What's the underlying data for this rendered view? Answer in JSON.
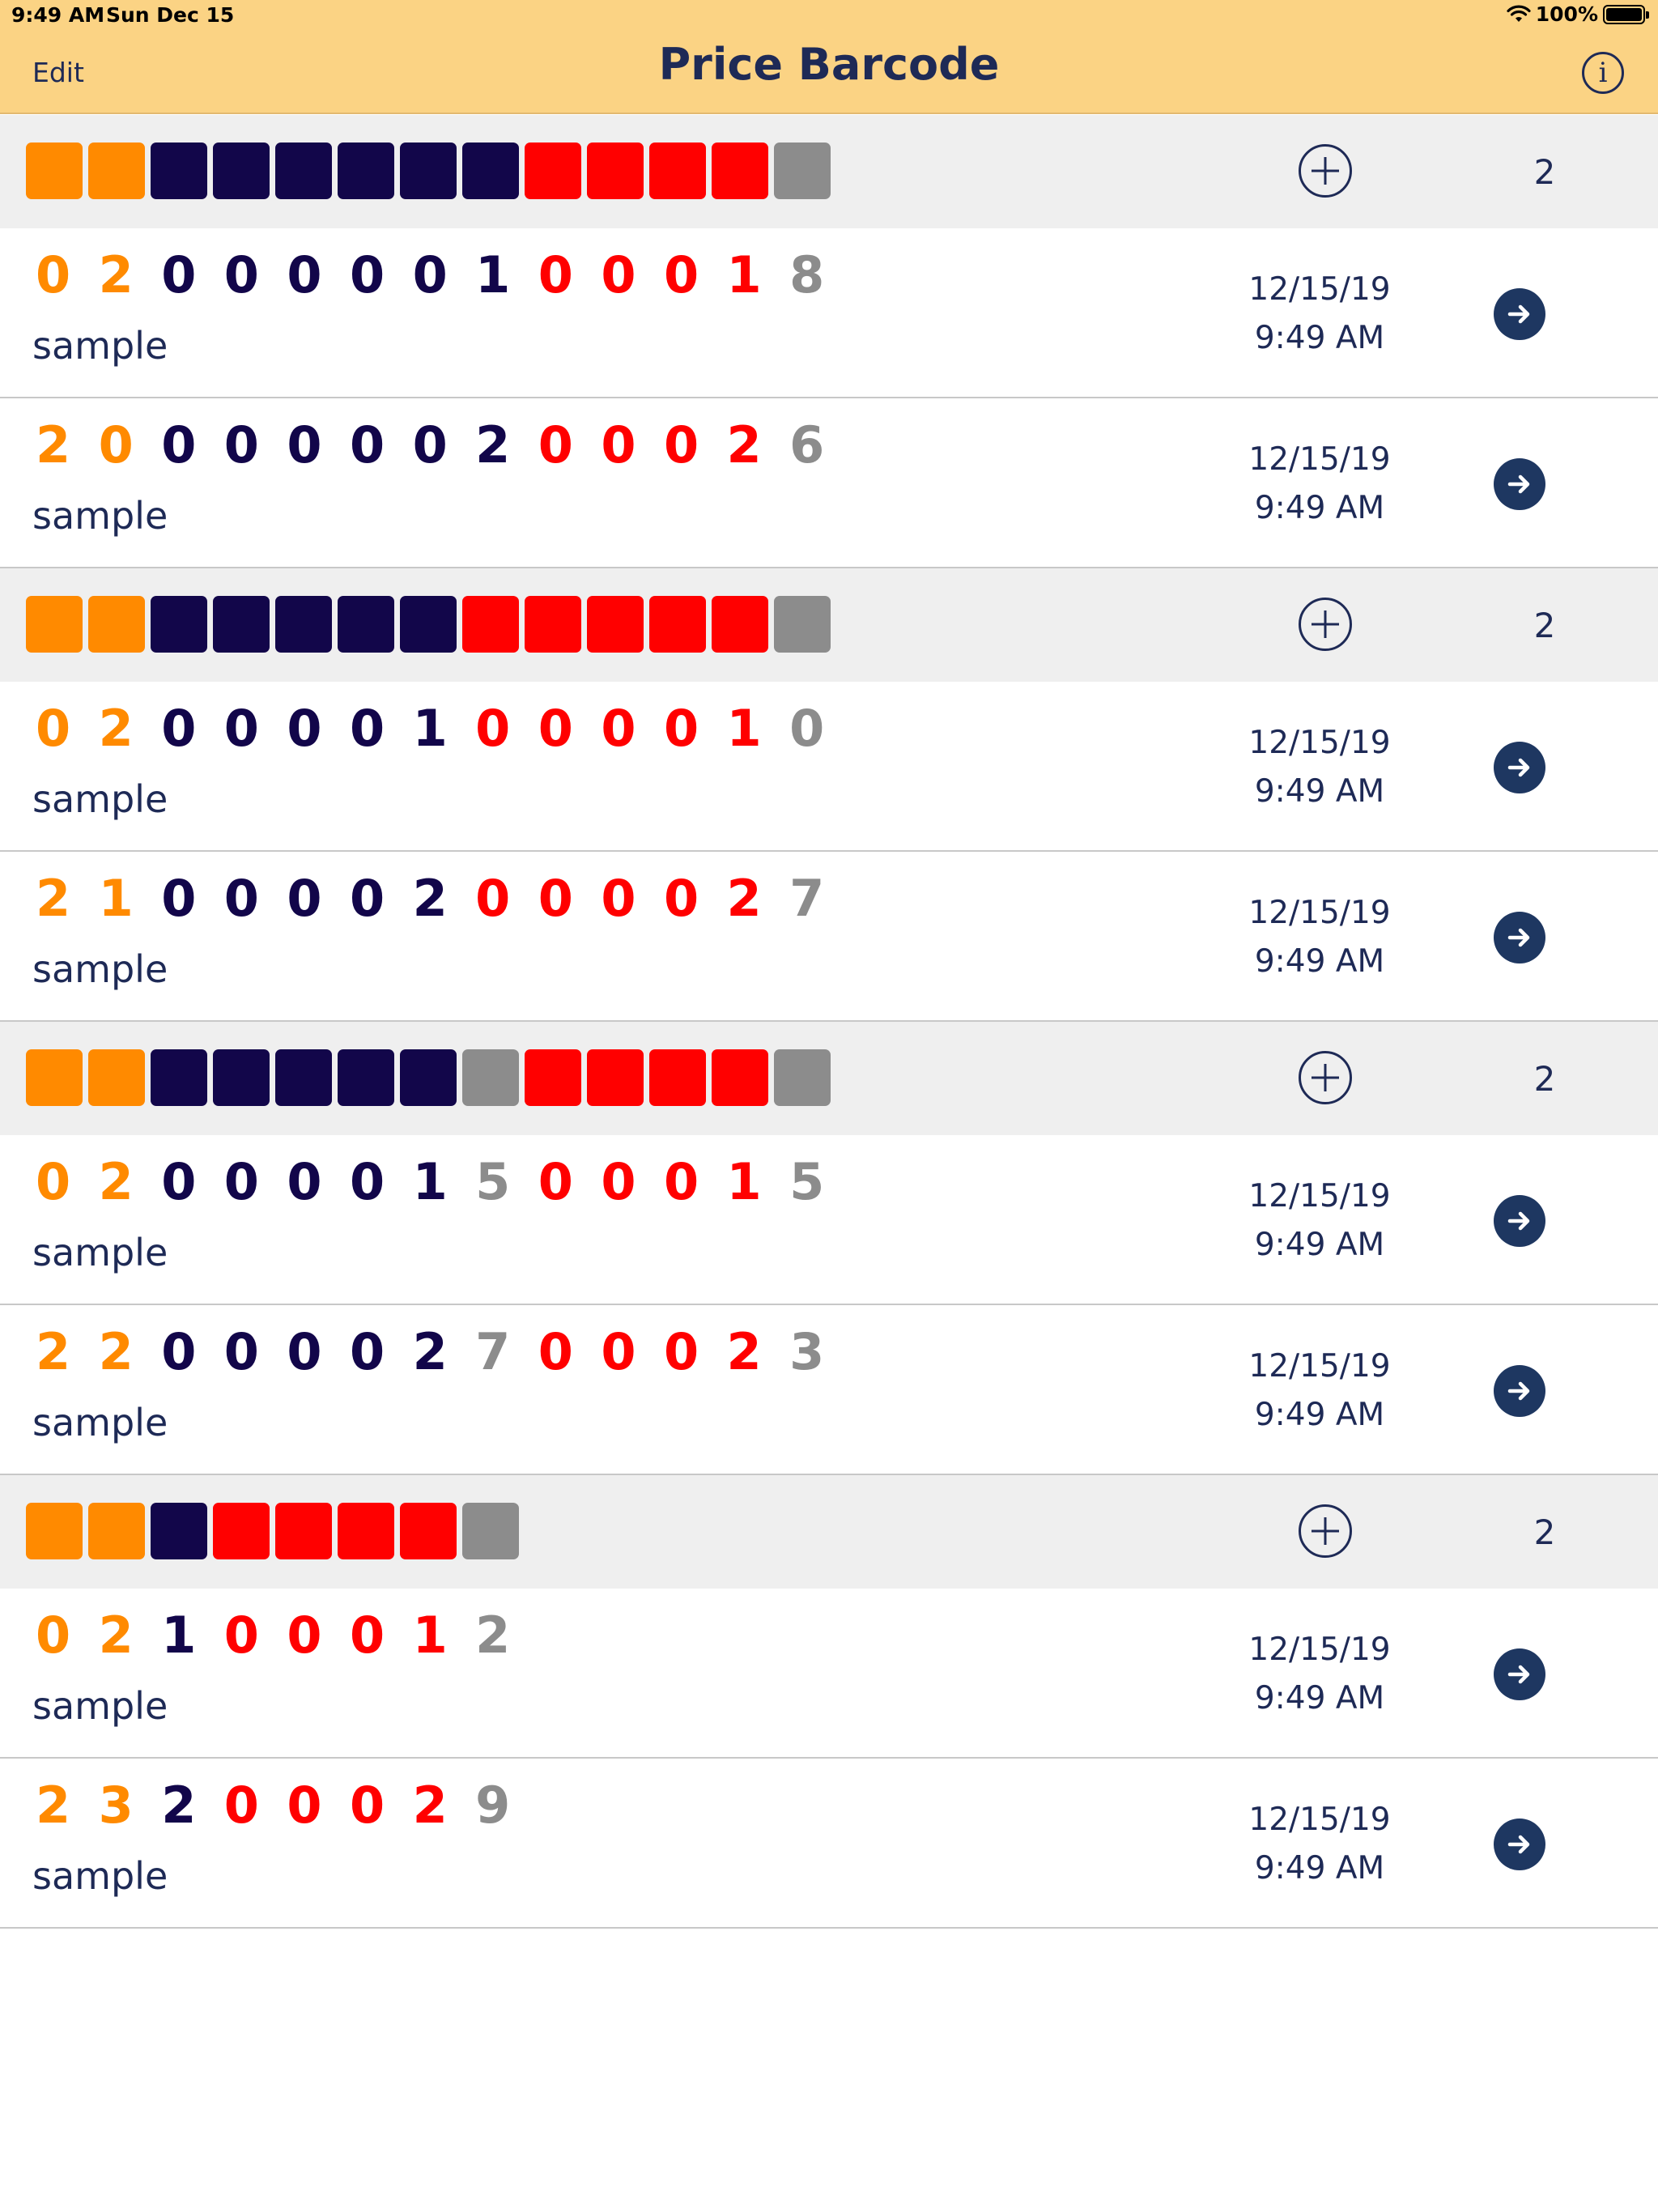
{
  "status_bar": {
    "time": "9:49 AM",
    "date": "Sun Dec 15",
    "battery": "100%",
    "wifi_icon": "wifi-icon",
    "battery_icon": "battery-icon"
  },
  "nav": {
    "edit_label": "Edit",
    "title": "Price Barcode",
    "info_icon": "info-icon"
  },
  "colors": {
    "orange": "#ff8a00",
    "navy": "#12064a",
    "red": "#ff0000",
    "gray": "#8c8c8c",
    "header_bg": "#fbd384",
    "text": "#1e2a56"
  },
  "sections": [
    {
      "pattern": [
        "o",
        "o",
        "n",
        "n",
        "n",
        "n",
        "n",
        "n",
        "r",
        "r",
        "r",
        "r",
        "g"
      ],
      "count": "2",
      "rows": [
        {
          "digits": [
            "0",
            "2",
            "0",
            "0",
            "0",
            "0",
            "0",
            "1",
            "0",
            "0",
            "0",
            "1",
            "8"
          ],
          "label": "sample",
          "date": "12/15/19",
          "time": "9:49 AM"
        },
        {
          "digits": [
            "2",
            "0",
            "0",
            "0",
            "0",
            "0",
            "0",
            "2",
            "0",
            "0",
            "0",
            "2",
            "6"
          ],
          "label": "sample",
          "date": "12/15/19",
          "time": "9:49 AM"
        }
      ]
    },
    {
      "pattern": [
        "o",
        "o",
        "n",
        "n",
        "n",
        "n",
        "n",
        "r",
        "r",
        "r",
        "r",
        "r",
        "g"
      ],
      "count": "2",
      "rows": [
        {
          "digits": [
            "0",
            "2",
            "0",
            "0",
            "0",
            "0",
            "1",
            "0",
            "0",
            "0",
            "0",
            "1",
            "0"
          ],
          "label": "sample",
          "date": "12/15/19",
          "time": "9:49 AM"
        },
        {
          "digits": [
            "2",
            "1",
            "0",
            "0",
            "0",
            "0",
            "2",
            "0",
            "0",
            "0",
            "0",
            "2",
            "7"
          ],
          "label": "sample",
          "date": "12/15/19",
          "time": "9:49 AM"
        }
      ]
    },
    {
      "pattern": [
        "o",
        "o",
        "n",
        "n",
        "n",
        "n",
        "n",
        "g",
        "r",
        "r",
        "r",
        "r",
        "g"
      ],
      "count": "2",
      "rows": [
        {
          "digits": [
            "0",
            "2",
            "0",
            "0",
            "0",
            "0",
            "1",
            "5",
            "0",
            "0",
            "0",
            "1",
            "5"
          ],
          "label": "sample",
          "date": "12/15/19",
          "time": "9:49 AM"
        },
        {
          "digits": [
            "2",
            "2",
            "0",
            "0",
            "0",
            "0",
            "2",
            "7",
            "0",
            "0",
            "0",
            "2",
            "3"
          ],
          "label": "sample",
          "date": "12/15/19",
          "time": "9:49 AM"
        }
      ]
    },
    {
      "pattern": [
        "o",
        "o",
        "n",
        "r",
        "r",
        "r",
        "r",
        "g"
      ],
      "count": "2",
      "rows": [
        {
          "digits": [
            "0",
            "2",
            "1",
            "0",
            "0",
            "0",
            "1",
            "2"
          ],
          "label": "sample",
          "date": "12/15/19",
          "time": "9:49 AM"
        },
        {
          "digits": [
            "2",
            "3",
            "2",
            "0",
            "0",
            "0",
            "2",
            "9"
          ],
          "label": "sample",
          "date": "12/15/19",
          "time": "9:49 AM"
        }
      ]
    }
  ]
}
